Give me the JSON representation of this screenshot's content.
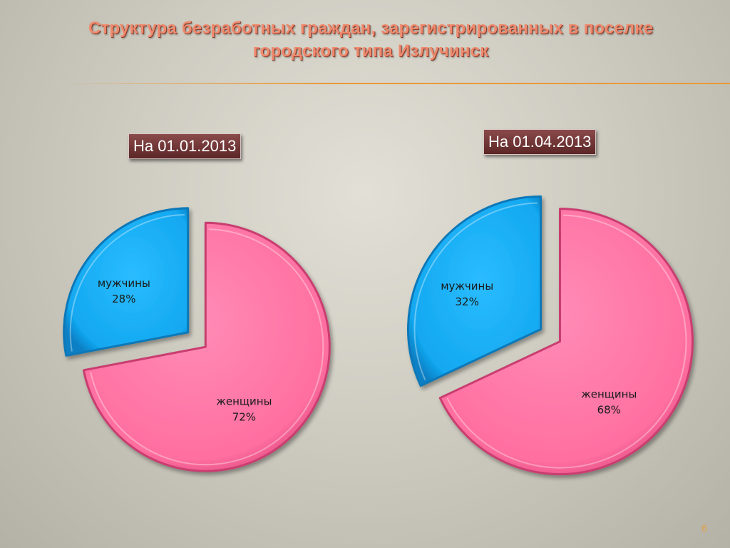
{
  "slide": {
    "title_line1": "Структура безработных граждан, зарегистрированных в поселке",
    "title_line2": "городского типа Излучинск",
    "page_number": "6"
  },
  "colors": {
    "women": "#ff6fa0",
    "men": "#12a8f0",
    "title": "#ee8a6e",
    "datebox": "#6e3434"
  },
  "chart_data": [
    {
      "type": "pie",
      "title": "На 01.01.2013",
      "categories": [
        "мужчины",
        "женщины"
      ],
      "values": [
        28,
        72
      ],
      "labels": [
        "28%",
        "72%"
      ],
      "exploded": true
    },
    {
      "type": "pie",
      "title": "На 01.04.2013",
      "categories": [
        "мужчины",
        "женщины"
      ],
      "values": [
        32,
        68
      ],
      "labels": [
        "32%",
        "68%"
      ],
      "exploded": true
    }
  ]
}
